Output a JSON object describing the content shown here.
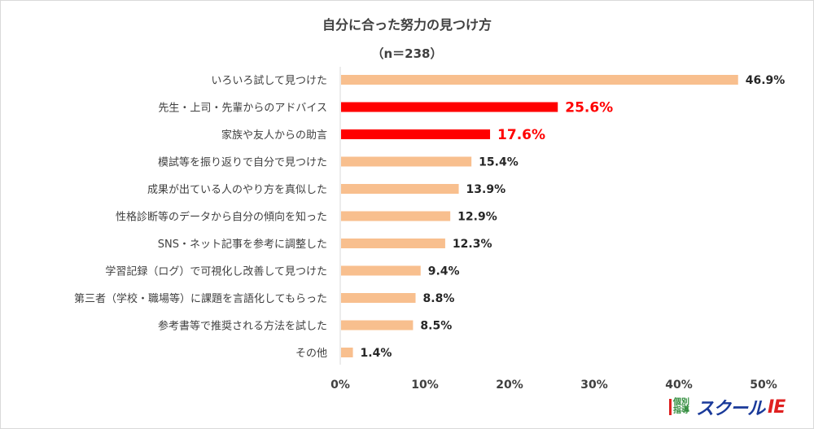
{
  "chart_data": {
    "type": "bar",
    "orientation": "horizontal",
    "title": "自分に合った努力の見つけ方",
    "subtitle": "（n＝238）",
    "categories": [
      "いろいろ試して見つけた",
      "先生・上司・先輩からのアドバイス",
      "家族や友人からの助言",
      "模試等を振り返りで自分で見つけた",
      "成果が出ている人のやり方を真似した",
      "性格診断等のデータから自分の傾向を知った",
      "SNS・ネット記事を参考に調整した",
      "学習記録（ログ）で可視化し改善して見つけた",
      "第三者（学校・職場等）に課題を言語化してもらった",
      "参考書等で推奨される方法を試した",
      "その他"
    ],
    "values": [
      46.9,
      25.6,
      17.6,
      15.4,
      13.9,
      12.9,
      12.3,
      9.4,
      8.8,
      8.5,
      1.4
    ],
    "value_labels": [
      "46.9%",
      "25.6%",
      "17.6%",
      "15.4%",
      "13.9%",
      "12.9%",
      "12.3%",
      "9.4%",
      "8.8%",
      "8.5%",
      "1.4%"
    ],
    "highlighted": [
      false,
      true,
      true,
      false,
      false,
      false,
      false,
      false,
      false,
      false,
      false
    ],
    "xlim": [
      0,
      50
    ],
    "x_ticks": [
      "0%",
      "10%",
      "20%",
      "30%",
      "40%",
      "50%"
    ],
    "grid": false,
    "xlabel": "",
    "ylabel": "",
    "colors": {
      "default": "#f8bf8e",
      "highlight": "#ff0000",
      "label_default": "#262626",
      "label_highlight": "#ff0000"
    }
  },
  "logo": {
    "kobetsu": "個別指導",
    "school": "スクール",
    "ie": "IE"
  }
}
